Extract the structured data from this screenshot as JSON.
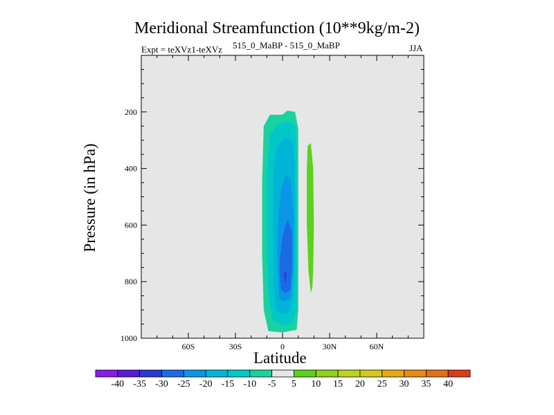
{
  "title": "Meridional Streamfunction (10**9kg/m-2)",
  "subtitle_left": "Expt = teXVz1-teXVz",
  "subtitle_center": "515_0_MaBP - 515_0_MaBP",
  "subtitle_right": "JJA",
  "colors": {
    "background": "#ffffff",
    "plot_background": "#e6e6e6",
    "axis": "#000000"
  },
  "chart_data": {
    "type": "contour",
    "title": "Meridional Streamfunction (10**9kg/m-2)",
    "xlabel": "Latitude",
    "ylabel": "Pressure (in hPa)",
    "xlim": [
      -90,
      90
    ],
    "ylim": [
      1000,
      0
    ],
    "x_ticks": [
      {
        "value": -60,
        "label": "60S"
      },
      {
        "value": -30,
        "label": "30S"
      },
      {
        "value": 0,
        "label": "0"
      },
      {
        "value": 30,
        "label": "30N"
      },
      {
        "value": 60,
        "label": "60N"
      }
    ],
    "y_ticks": [
      {
        "value": 200,
        "label": "200"
      },
      {
        "value": 400,
        "label": "400"
      },
      {
        "value": 600,
        "label": "600"
      },
      {
        "value": 800,
        "label": "800"
      },
      {
        "value": 1000,
        "label": "1000"
      }
    ],
    "colorbar": {
      "labels": [
        "-40",
        "-35",
        "-30",
        "-25",
        "-20",
        "-15",
        "-10",
        "-5",
        "5",
        "10",
        "15",
        "20",
        "25",
        "30",
        "35",
        "40"
      ],
      "colors": [
        "#8c1ae6",
        "#5a1ad6",
        "#2a3ad6",
        "#1a6ae6",
        "#0a96e6",
        "#00b4d8",
        "#00c8c8",
        "#1ad2a0",
        "#e6e6e6",
        "#5ad21e",
        "#8cd21e",
        "#bed21e",
        "#d2c81e",
        "#e6aa14",
        "#e68c14",
        "#e66e1a",
        "#dc3c14"
      ]
    },
    "regions": [
      {
        "name": "negative-cell-outer",
        "level": -5,
        "color": "#1ad2a0",
        "polygon": [
          [
            -9,
            975
          ],
          [
            -12,
            900
          ],
          [
            -13,
            700
          ],
          [
            -13,
            450
          ],
          [
            -12,
            250
          ],
          [
            -8,
            210
          ],
          [
            0,
            210
          ],
          [
            3,
            195
          ],
          [
            8,
            200
          ],
          [
            10,
            260
          ],
          [
            10,
            600
          ],
          [
            10,
            900
          ],
          [
            9,
            970
          ],
          [
            0,
            980
          ]
        ]
      },
      {
        "name": "negative-cell-10",
        "level": -10,
        "color": "#00c8c8",
        "polygon": [
          [
            -6,
            940
          ],
          [
            -9,
            850
          ],
          [
            -10,
            650
          ],
          [
            -10,
            420
          ],
          [
            -8,
            280
          ],
          [
            -3,
            240
          ],
          [
            3,
            235
          ],
          [
            8,
            245
          ],
          [
            9,
            330
          ],
          [
            9,
            700
          ],
          [
            9,
            900
          ],
          [
            6,
            950
          ],
          [
            0,
            955
          ]
        ]
      },
      {
        "name": "negative-cell-15",
        "level": -15,
        "color": "#00b4d8",
        "polygon": [
          [
            -4,
            900
          ],
          [
            -6,
            800
          ],
          [
            -6,
            600
          ],
          [
            -6,
            420
          ],
          [
            -4,
            330
          ],
          [
            1,
            290
          ],
          [
            6,
            300
          ],
          [
            8,
            380
          ],
          [
            8,
            650
          ],
          [
            7,
            850
          ],
          [
            4,
            910
          ],
          [
            0,
            915
          ]
        ]
      },
      {
        "name": "negative-cell-20",
        "level": -20,
        "color": "#0a96e6",
        "polygon": [
          [
            -2,
            860
          ],
          [
            -3,
            760
          ],
          [
            -3,
            600
          ],
          [
            -1,
            480
          ],
          [
            2,
            420
          ],
          [
            5,
            440
          ],
          [
            7,
            560
          ],
          [
            7,
            760
          ],
          [
            5,
            860
          ],
          [
            1,
            870
          ]
        ]
      },
      {
        "name": "negative-cell-25",
        "level": -25,
        "color": "#1a6ae6",
        "polygon": [
          [
            -1,
            830
          ],
          [
            -2,
            740
          ],
          [
            0,
            640
          ],
          [
            3,
            580
          ],
          [
            6,
            620
          ],
          [
            6,
            740
          ],
          [
            5,
            830
          ],
          [
            2,
            840
          ]
        ]
      },
      {
        "name": "negative-cell-30",
        "level": -30,
        "color": "#2a3ad6",
        "polygon": [
          [
            1.5,
            800
          ],
          [
            1,
            770
          ],
          [
            2,
            760
          ],
          [
            2.5,
            780
          ],
          [
            2,
            805
          ]
        ]
      },
      {
        "name": "positive-cell-10",
        "level": 10,
        "color": "#5ad21e",
        "polygon": [
          [
            16,
            320
          ],
          [
            18,
            310
          ],
          [
            19.5,
            400
          ],
          [
            20,
            600
          ],
          [
            19.5,
            760
          ],
          [
            19,
            820
          ],
          [
            18,
            840
          ],
          [
            16.5,
            760
          ],
          [
            15.5,
            600
          ],
          [
            15.5,
            400
          ]
        ]
      }
    ]
  }
}
